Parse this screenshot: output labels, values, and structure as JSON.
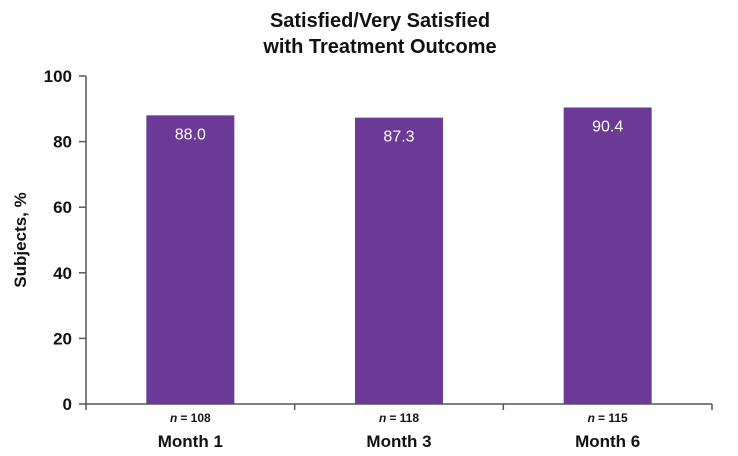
{
  "chart_data": {
    "type": "bar",
    "title_lines": [
      "Satisfied/Very Satisfied",
      "with Treatment Outcome"
    ],
    "categories": [
      "Month 1",
      "Month 3",
      "Month 6"
    ],
    "values": [
      88.0,
      87.3,
      90.4
    ],
    "value_labels": [
      "88.0",
      "87.3",
      "90.4"
    ],
    "sample_size_prefix": "n",
    "sample_sizes": [
      "= 108",
      "= 118",
      "= 115"
    ],
    "ylabel": "Subjects, %",
    "xlabel": "",
    "ylim": [
      0,
      100
    ],
    "yticks": [
      0,
      20,
      40,
      60,
      80,
      100
    ],
    "grid": false,
    "legend": "none",
    "bar_color": "#6a3a96",
    "data_label_color": "#ffffff"
  }
}
